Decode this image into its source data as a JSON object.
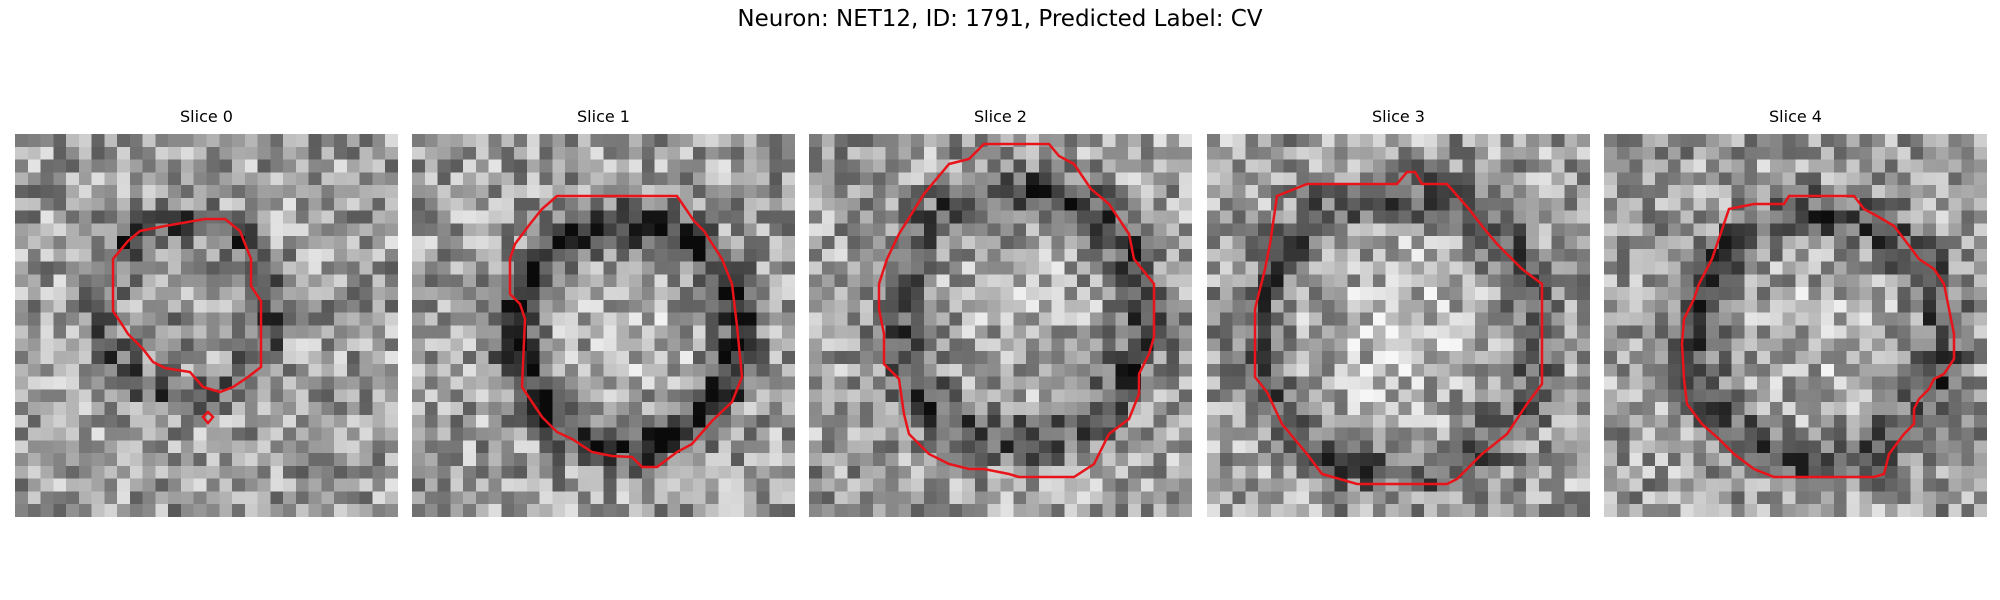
{
  "figure": {
    "title": "Neuron: NET12, ID: 1791, Predicted Label: CV"
  },
  "contour_color": "#e8141a",
  "image_kind": "grayscale-pixel-noise-microscopy",
  "panels": [
    {
      "title": "Slice 0",
      "seed": 11,
      "rim_darkness": 0.55,
      "interior_brightness": -0.15
    },
    {
      "title": "Slice 1",
      "seed": 23,
      "rim_darkness": 0.75,
      "interior_brightness": 0.35
    },
    {
      "title": "Slice 2",
      "seed": 37,
      "rim_darkness": 0.55,
      "interior_brightness": 0.25
    },
    {
      "title": "Slice 3",
      "seed": 41,
      "rim_darkness": 0.45,
      "interior_brightness": 0.55
    },
    {
      "title": "Slice 4",
      "seed": 53,
      "rim_darkness": 0.55,
      "interior_brightness": 0.35
    }
  ]
}
